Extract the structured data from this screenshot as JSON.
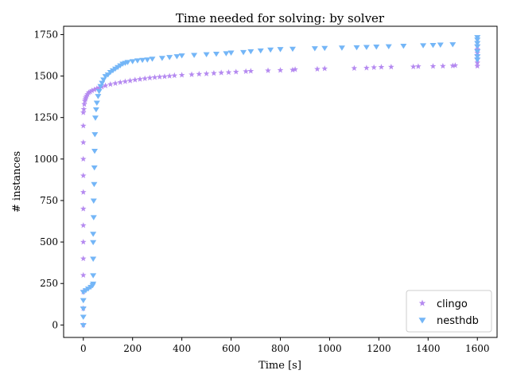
{
  "chart_data": {
    "type": "scatter",
    "title": "Time needed for solving: by solver",
    "xlabel": "Time [s]",
    "ylabel": "# instances",
    "xlim": [
      -80,
      1680
    ],
    "ylim": [
      -75,
      1800
    ],
    "xticks": [
      0,
      200,
      400,
      600,
      800,
      1000,
      1200,
      1400,
      1600
    ],
    "yticks": [
      0,
      250,
      500,
      750,
      1000,
      1250,
      1500,
      1750
    ],
    "legend_position": "lower-right",
    "grid": false,
    "series": [
      {
        "name": "clingo",
        "marker": "star",
        "color": "#b58af0",
        "points": [
          [
            0,
            0
          ],
          [
            0,
            100
          ],
          [
            0,
            200
          ],
          [
            0,
            300
          ],
          [
            0,
            400
          ],
          [
            0,
            500
          ],
          [
            0,
            600
          ],
          [
            0,
            700
          ],
          [
            0,
            800
          ],
          [
            0,
            900
          ],
          [
            0,
            1000
          ],
          [
            0,
            1100
          ],
          [
            0,
            1200
          ],
          [
            0,
            1280
          ],
          [
            2,
            1300
          ],
          [
            4,
            1330
          ],
          [
            6,
            1350
          ],
          [
            8,
            1360
          ],
          [
            10,
            1370
          ],
          [
            13,
            1380
          ],
          [
            17,
            1390
          ],
          [
            22,
            1400
          ],
          [
            28,
            1405
          ],
          [
            35,
            1412
          ],
          [
            45,
            1418
          ],
          [
            55,
            1425
          ],
          [
            65,
            1430
          ],
          [
            75,
            1435
          ],
          [
            90,
            1442
          ],
          [
            110,
            1450
          ],
          [
            130,
            1456
          ],
          [
            150,
            1462
          ],
          [
            170,
            1467
          ],
          [
            190,
            1472
          ],
          [
            210,
            1477
          ],
          [
            230,
            1481
          ],
          [
            250,
            1485
          ],
          [
            270,
            1489
          ],
          [
            290,
            1492
          ],
          [
            310,
            1495
          ],
          [
            330,
            1497
          ],
          [
            350,
            1500
          ],
          [
            370,
            1503
          ],
          [
            400,
            1506
          ],
          [
            440,
            1509
          ],
          [
            470,
            1512
          ],
          [
            500,
            1514
          ],
          [
            530,
            1517
          ],
          [
            560,
            1520
          ],
          [
            590,
            1522
          ],
          [
            620,
            1525
          ],
          [
            660,
            1528
          ],
          [
            680,
            1530
          ],
          [
            750,
            1533
          ],
          [
            800,
            1535
          ],
          [
            850,
            1537
          ],
          [
            860,
            1540
          ],
          [
            950,
            1542
          ],
          [
            980,
            1545
          ],
          [
            1100,
            1547
          ],
          [
            1150,
            1549
          ],
          [
            1180,
            1552
          ],
          [
            1210,
            1554
          ],
          [
            1250,
            1555
          ],
          [
            1340,
            1556
          ],
          [
            1360,
            1558
          ],
          [
            1420,
            1559
          ],
          [
            1460,
            1560
          ],
          [
            1500,
            1562
          ],
          [
            1510,
            1564
          ],
          [
            1600,
            1560
          ],
          [
            1600,
            1580
          ],
          [
            1600,
            1600
          ],
          [
            1600,
            1620
          ],
          [
            1600,
            1640
          ],
          [
            1600,
            1660
          ],
          [
            1600,
            1680
          ]
        ]
      },
      {
        "name": "nesthdb",
        "marker": "tri_down",
        "color": "#74b6f7",
        "points": [
          [
            0,
            0
          ],
          [
            0,
            50
          ],
          [
            0,
            100
          ],
          [
            0,
            150
          ],
          [
            0,
            200
          ],
          [
            10,
            210
          ],
          [
            20,
            220
          ],
          [
            30,
            230
          ],
          [
            38,
            240
          ],
          [
            40,
            250
          ],
          [
            40,
            300
          ],
          [
            40,
            400
          ],
          [
            40,
            500
          ],
          [
            40,
            550
          ],
          [
            42,
            650
          ],
          [
            42,
            750
          ],
          [
            44,
            850
          ],
          [
            45,
            950
          ],
          [
            46,
            1050
          ],
          [
            47,
            1150
          ],
          [
            49,
            1250
          ],
          [
            52,
            1300
          ],
          [
            55,
            1340
          ],
          [
            60,
            1380
          ],
          [
            64,
            1410
          ],
          [
            70,
            1440
          ],
          [
            76,
            1460
          ],
          [
            82,
            1480
          ],
          [
            90,
            1500
          ],
          [
            100,
            1510
          ],
          [
            110,
            1525
          ],
          [
            120,
            1535
          ],
          [
            130,
            1545
          ],
          [
            140,
            1555
          ],
          [
            150,
            1565
          ],
          [
            160,
            1575
          ],
          [
            170,
            1580
          ],
          [
            180,
            1585
          ],
          [
            200,
            1590
          ],
          [
            220,
            1595
          ],
          [
            240,
            1598
          ],
          [
            260,
            1600
          ],
          [
            280,
            1605
          ],
          [
            320,
            1610
          ],
          [
            350,
            1615
          ],
          [
            380,
            1620
          ],
          [
            400,
            1625
          ],
          [
            450,
            1628
          ],
          [
            500,
            1632
          ],
          [
            540,
            1635
          ],
          [
            580,
            1638
          ],
          [
            600,
            1642
          ],
          [
            650,
            1645
          ],
          [
            680,
            1650
          ],
          [
            720,
            1655
          ],
          [
            760,
            1660
          ],
          [
            800,
            1663
          ],
          [
            850,
            1665
          ],
          [
            940,
            1668
          ],
          [
            980,
            1670
          ],
          [
            1050,
            1672
          ],
          [
            1110,
            1674
          ],
          [
            1150,
            1676
          ],
          [
            1190,
            1678
          ],
          [
            1240,
            1680
          ],
          [
            1300,
            1683
          ],
          [
            1380,
            1686
          ],
          [
            1420,
            1688
          ],
          [
            1450,
            1690
          ],
          [
            1500,
            1692
          ],
          [
            1600,
            1600
          ],
          [
            1600,
            1620
          ],
          [
            1600,
            1650
          ],
          [
            1600,
            1680
          ],
          [
            1600,
            1700
          ],
          [
            1600,
            1720
          ],
          [
            1600,
            1735
          ]
        ]
      }
    ]
  }
}
